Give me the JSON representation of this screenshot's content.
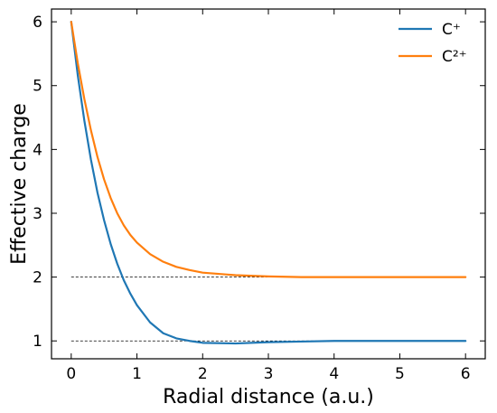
{
  "chart_data": {
    "type": "line",
    "title": "",
    "xlabel": "Radial distance (a.u.)",
    "ylabel": "Effective charge",
    "xlim": [
      -0.3,
      6.3
    ],
    "ylim": [
      0.72,
      6.2
    ],
    "xticks": [
      0,
      1,
      2,
      3,
      4,
      5,
      6
    ],
    "yticks": [
      1,
      2,
      3,
      4,
      5,
      6
    ],
    "grid": false,
    "legend_position": "top-right",
    "x": [
      0,
      0.1,
      0.2,
      0.3,
      0.4,
      0.5,
      0.6,
      0.7,
      0.8,
      0.9,
      1.0,
      1.2,
      1.4,
      1.6,
      1.8,
      2.0,
      2.5,
      3.0,
      3.5,
      4.0,
      4.5,
      5.0,
      5.5,
      6.0
    ],
    "series": [
      {
        "name": "C⁺",
        "color": "#1f77b4",
        "values": [
          6.0,
          5.16,
          4.45,
          3.84,
          3.32,
          2.89,
          2.52,
          2.21,
          1.95,
          1.74,
          1.56,
          1.29,
          1.12,
          1.04,
          1.0,
          0.97,
          0.96,
          0.98,
          0.99,
          1.0,
          1.0,
          1.0,
          1.0,
          1.0
        ]
      },
      {
        "name": "C²⁺",
        "color": "#ff7f0e",
        "values": [
          6.0,
          5.35,
          4.79,
          4.3,
          3.88,
          3.53,
          3.24,
          3.0,
          2.81,
          2.66,
          2.54,
          2.36,
          2.24,
          2.16,
          2.11,
          2.07,
          2.03,
          2.01,
          2.0,
          2.0,
          2.0,
          2.0,
          2.0,
          2.0
        ]
      }
    ],
    "reference_lines": [
      {
        "y": 1,
        "style": "dashed",
        "color": "#000000"
      },
      {
        "y": 2,
        "style": "dashed",
        "color": "#000000"
      }
    ]
  }
}
